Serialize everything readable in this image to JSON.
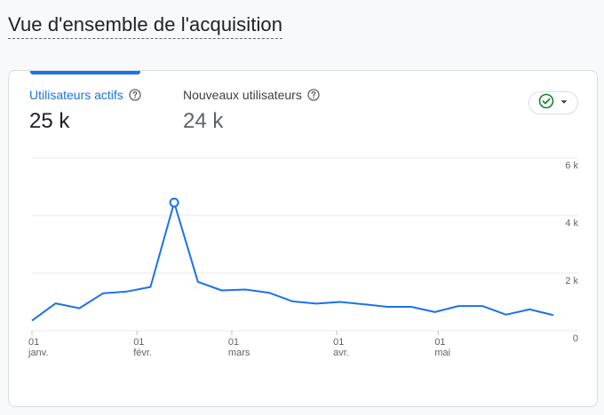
{
  "page": {
    "title": "Vue d'ensemble de l'acquisition"
  },
  "metrics": [
    {
      "label": "Utilisateurs actifs",
      "value": "25 k",
      "active": true
    },
    {
      "label": "Nouveaux utilisateurs",
      "value": "24 k",
      "active": false
    }
  ],
  "icons": {
    "help": "help-circle-icon",
    "compare": "check-circle-icon",
    "dropdown": "caret-down-icon"
  },
  "colors": {
    "accent": "#1a73e8",
    "check": "#188038",
    "grid": "#e8eaed",
    "text_muted": "#5f6368"
  },
  "chart_data": {
    "type": "line",
    "title": "",
    "xlabel": "",
    "ylabel": "",
    "ylim": [
      0,
      6000
    ],
    "y_ticks": [
      "6 k",
      "4 k",
      "2 k",
      "0"
    ],
    "y_tick_values": [
      6000,
      4000,
      2000,
      0
    ],
    "x_tick_labels": [
      {
        "day": "01",
        "month": "janv.",
        "index": 0
      },
      {
        "day": "01",
        "month": "févr.",
        "index": 4.43
      },
      {
        "day": "01",
        "month": "mars",
        "index": 8.43
      },
      {
        "day": "01",
        "month": "avr.",
        "index": 12.86
      },
      {
        "day": "01",
        "month": "mai",
        "index": 17.14
      }
    ],
    "grid": true,
    "series": [
      {
        "values": [
          350,
          950,
          780,
          1300,
          1360,
          1520,
          4450,
          1700,
          1400,
          1430,
          1320,
          1020,
          940,
          1000,
          920,
          830,
          830,
          650,
          860,
          860,
          560,
          740,
          540
        ],
        "highlight_index": 6
      }
    ]
  }
}
